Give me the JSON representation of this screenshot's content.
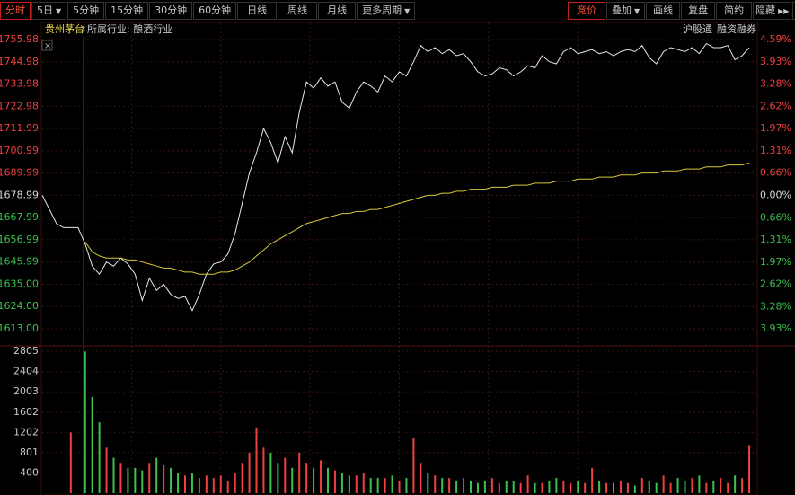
{
  "toolbar": {
    "left": [
      "分时",
      "5日",
      "5分钟",
      "15分钟",
      "30分钟",
      "60分钟",
      "日线",
      "周线",
      "月线",
      "更多周期"
    ],
    "right": [
      "竞价",
      "叠加",
      "画线",
      "复盘",
      "简约",
      "隐藏"
    ]
  },
  "header": {
    "stock": "贵州茅台",
    "industry": "所属行业: 酿酒行业",
    "tags": [
      "沪股通",
      "融资融券"
    ]
  },
  "chart_data": [
    {
      "type": "line",
      "ylim": [
        1613,
        1755.98
      ],
      "yticks": [
        1755.98,
        1744.98,
        1733.98,
        1722.98,
        1711.99,
        1700.99,
        1689.99,
        1678.99,
        1667.99,
        1656.99,
        1645.99,
        {
          "value": 1635,
          "label": "1635.00"
        },
        {
          "value": 1624,
          "label": "1624.00"
        },
        {
          "value": 1613,
          "label": "1613.00"
        }
      ],
      "y2lim": [
        -3.93,
        4.59
      ],
      "y2ticks": [
        {
          "value": 4.59,
          "label": "4.59%"
        },
        {
          "value": 3.93,
          "label": "3.93%"
        },
        {
          "value": 3.28,
          "label": "3.28%"
        },
        {
          "value": 2.62,
          "label": "2.62%"
        },
        {
          "value": 1.97,
          "label": "1.97%"
        },
        {
          "value": 1.31,
          "label": "1.31%"
        },
        {
          "value": 0.66,
          "label": "0.66%"
        },
        {
          "value": 0,
          "label": "0.00%"
        },
        {
          "value": -0.66,
          "label": "0.66%"
        },
        {
          "value": -1.31,
          "label": "1.31%"
        },
        {
          "value": -1.97,
          "label": "1.97%"
        },
        {
          "value": -2.62,
          "label": "2.62%"
        },
        {
          "value": -3.28,
          "label": "3.28%"
        },
        {
          "value": -3.93,
          "label": "3.93%"
        }
      ],
      "up_color": "#f04040",
      "down_color": "#3cc24e",
      "series": [
        {
          "color": "#e8e8e8",
          "values": [
            1679,
            1672,
            1665,
            1663,
            1663,
            1663,
            1655,
            1644,
            1640,
            1646,
            1644,
            1648,
            1645,
            1640,
            1627,
            1638,
            1632,
            1635,
            1630,
            1628,
            1629,
            1622,
            1630,
            1640,
            1645,
            1646,
            1650,
            1660,
            1675,
            1690,
            1700,
            1712,
            1705,
            1695,
            1708,
            1700,
            1720,
            1735,
            1732,
            1737,
            1733,
            1735,
            1725,
            1722,
            1730,
            1735,
            1733,
            1730,
            1738,
            1735,
            1740,
            1738,
            1745,
            1753,
            1750,
            1752,
            1749,
            1751,
            1748,
            1749,
            1745,
            1740,
            1738,
            1739,
            1742,
            1741,
            1738,
            1740,
            1743,
            1742,
            1748,
            1745,
            1744,
            1750,
            1752,
            1749,
            1750,
            1751,
            1749,
            1750,
            1748,
            1750,
            1751,
            1750,
            1753,
            1747,
            1744,
            1750,
            1752,
            1751,
            1750,
            1752,
            1749,
            1754,
            1752,
            1752,
            1753,
            1746,
            1748,
            1752
          ]
        },
        {
          "color": "#d8c83a",
          "values": [
            null,
            null,
            null,
            null,
            null,
            null,
            1656,
            1651,
            1649,
            1648,
            1648,
            1648,
            1647,
            1647,
            1646,
            1645,
            1644,
            1643,
            1643,
            1642,
            1641,
            1641,
            1640,
            1640,
            1640,
            1641,
            1641,
            1642,
            1644,
            1646,
            1649,
            1652,
            1655,
            1657,
            1659,
            1661,
            1663,
            1665,
            1666,
            1667,
            1668,
            1669,
            1670,
            1670,
            1671,
            1671,
            1672,
            1672,
            1673,
            1674,
            1675,
            1676,
            1677,
            1678,
            1679,
            1679,
            1680,
            1680,
            1681,
            1681,
            1682,
            1682,
            1682,
            1683,
            1683,
            1683,
            1684,
            1684,
            1684,
            1685,
            1685,
            1685,
            1686,
            1686,
            1686,
            1687,
            1687,
            1687,
            1688,
            1688,
            1688,
            1689,
            1689,
            1689,
            1690,
            1690,
            1690,
            1691,
            1691,
            1691,
            1692,
            1692,
            1692,
            1693,
            1693,
            1693,
            1694,
            1694,
            1694,
            1695
          ]
        }
      ]
    },
    {
      "type": "bar",
      "ylim": [
        0,
        2805
      ],
      "yticks": [
        400,
        801,
        1202,
        1602,
        2003,
        2404,
        2805
      ],
      "values": [
        null,
        null,
        null,
        null,
        1200,
        null,
        2800,
        1900,
        1400,
        900,
        700,
        600,
        500,
        500,
        450,
        600,
        700,
        550,
        500,
        400,
        350,
        400,
        300,
        350,
        300,
        350,
        250,
        400,
        600,
        800,
        1300,
        900,
        800,
        600,
        700,
        500,
        800,
        600,
        500,
        650,
        500,
        450,
        400,
        350,
        350,
        400,
        300,
        300,
        300,
        350,
        250,
        300,
        1100,
        600,
        400,
        350,
        300,
        300,
        250,
        300,
        250,
        200,
        250,
        300,
        200,
        250,
        250,
        200,
        350,
        200,
        200,
        250,
        300,
        250,
        200,
        250,
        200,
        500,
        250,
        200,
        200,
        250,
        200,
        150,
        300,
        250,
        200,
        350,
        200,
        300,
        250,
        300,
        350,
        200,
        250,
        300,
        200,
        350,
        300,
        950
      ]
    }
  ]
}
